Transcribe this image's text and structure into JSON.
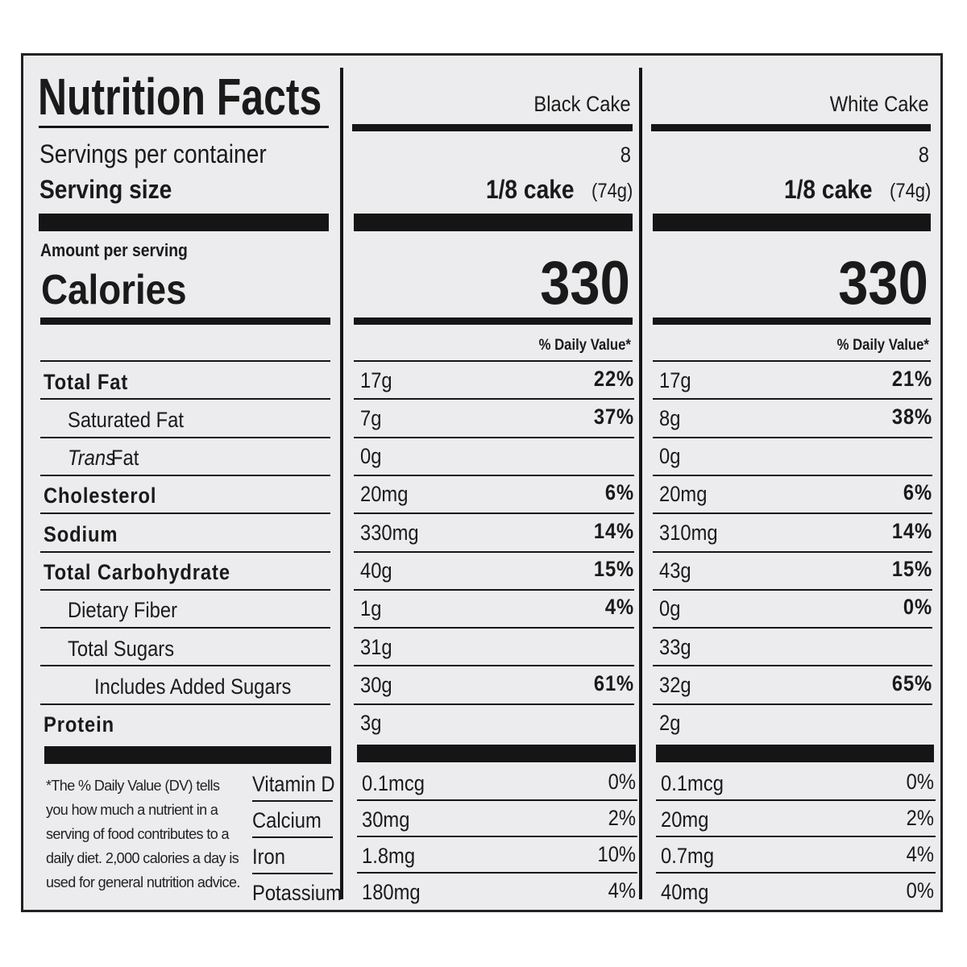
{
  "title": "Nutrition Facts",
  "servings_label": "Servings per container",
  "serving_size_label": "Serving size",
  "amount_label": "Amount per serving",
  "calories_label": "Calories",
  "dv_label": "% Daily Value*",
  "nutrients": [
    {
      "name": "Total Fat",
      "bold": true,
      "indent": 0
    },
    {
      "name": "Saturated Fat",
      "bold": false,
      "indent": 1
    },
    {
      "prefix": "Trans",
      "name": "Fat",
      "bold": false,
      "indent": 1
    },
    {
      "name": "Cholesterol",
      "bold": true,
      "indent": 0
    },
    {
      "name": "Sodium",
      "bold": true,
      "indent": 0
    },
    {
      "name": "Total Carbohydrate",
      "bold": true,
      "indent": 0
    },
    {
      "name": "Dietary Fiber",
      "bold": false,
      "indent": 1
    },
    {
      "name": "Total Sugars",
      "bold": false,
      "indent": 1
    },
    {
      "name": "Includes Added Sugars",
      "bold": false,
      "indent": 2
    },
    {
      "name": "Protein",
      "bold": true,
      "indent": 0
    }
  ],
  "vitamins": [
    "Vitamin D",
    "Calcium",
    "Iron",
    "Potassium"
  ],
  "footnote": "*The % Daily Value (DV) tells you how much a nutrient in a serving of food contributes to a daily diet. 2,000 calories a day is used for general nutrition advice.",
  "products": [
    {
      "name": "Black Cake",
      "servings": "8",
      "serving_size": "1/8 cake",
      "serving_weight": "(74g)",
      "calories": "330",
      "amounts": [
        "17g",
        "7g",
        "0g",
        "20mg",
        "330mg",
        "40g",
        "1g",
        "31g",
        "30g",
        "3g"
      ],
      "dvs": [
        "22%",
        "37%",
        null,
        "6%",
        "14%",
        "15%",
        "4%",
        null,
        "61%",
        null
      ],
      "vitamin_amounts": [
        "0.1mcg",
        "30mg",
        "1.8mg",
        "180mg"
      ],
      "vitamin_dvs": [
        "0%",
        "2%",
        "10%",
        "4%"
      ]
    },
    {
      "name": "White Cake",
      "servings": "8",
      "serving_size": "1/8 cake",
      "serving_weight": "(74g)",
      "calories": "330",
      "amounts": [
        "17g",
        "8g",
        "0g",
        "20mg",
        "310mg",
        "43g",
        "0g",
        "33g",
        "32g",
        "2g"
      ],
      "dvs": [
        "21%",
        "38%",
        null,
        "6%",
        "14%",
        "15%",
        "0%",
        null,
        "65%",
        null
      ],
      "vitamin_amounts": [
        "0.1mcg",
        "20mg",
        "0.7mg",
        "40mg"
      ],
      "vitamin_dvs": [
        "0%",
        "2%",
        "4%",
        "0%"
      ]
    }
  ]
}
